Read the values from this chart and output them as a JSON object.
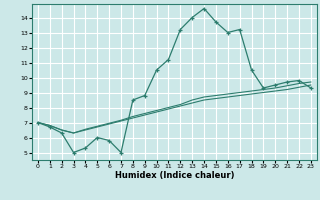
{
  "xlabel": "Humidex (Indice chaleur)",
  "ylabel": "",
  "bg_color": "#cce8e8",
  "grid_color": "#ffffff",
  "line_color": "#2d7d6e",
  "xlim": [
    -0.5,
    23.5
  ],
  "ylim": [
    4.5,
    14.9
  ],
  "xticks": [
    0,
    1,
    2,
    3,
    4,
    5,
    6,
    7,
    8,
    9,
    10,
    11,
    12,
    13,
    14,
    15,
    16,
    17,
    18,
    19,
    20,
    21,
    22,
    23
  ],
  "yticks": [
    5,
    6,
    7,
    8,
    9,
    10,
    11,
    12,
    13,
    14
  ],
  "line1_x": [
    0,
    1,
    2,
    3,
    4,
    5,
    6,
    7,
    8,
    9,
    10,
    11,
    12,
    13,
    14,
    15,
    16,
    17,
    18,
    19,
    20,
    21,
    22,
    23
  ],
  "line1_y": [
    7.0,
    6.7,
    6.3,
    5.0,
    5.3,
    6.0,
    5.8,
    5.0,
    8.5,
    8.8,
    10.5,
    11.2,
    13.2,
    14.0,
    14.6,
    13.7,
    13.0,
    13.2,
    10.5,
    9.3,
    9.5,
    9.7,
    9.8,
    9.3
  ],
  "line2_x": [
    0,
    1,
    2,
    3,
    4,
    5,
    6,
    7,
    8,
    9,
    10,
    11,
    12,
    13,
    14,
    15,
    16,
    17,
    18,
    19,
    20,
    21,
    22,
    23
  ],
  "line2_y": [
    7.0,
    6.8,
    6.5,
    6.3,
    6.5,
    6.7,
    6.9,
    7.1,
    7.3,
    7.5,
    7.7,
    7.9,
    8.1,
    8.3,
    8.5,
    8.6,
    8.7,
    8.8,
    8.9,
    9.0,
    9.1,
    9.2,
    9.35,
    9.5
  ],
  "line3_x": [
    0,
    1,
    2,
    3,
    4,
    5,
    6,
    7,
    8,
    9,
    10,
    11,
    12,
    13,
    14,
    15,
    16,
    17,
    18,
    19,
    20,
    21,
    22,
    23
  ],
  "line3_y": [
    7.0,
    6.8,
    6.5,
    6.3,
    6.55,
    6.75,
    6.95,
    7.15,
    7.4,
    7.6,
    7.8,
    8.0,
    8.2,
    8.5,
    8.7,
    8.8,
    8.9,
    9.0,
    9.1,
    9.2,
    9.3,
    9.45,
    9.6,
    9.7
  ],
  "tick_fontsize": 4.5,
  "xlabel_fontsize": 6.0
}
